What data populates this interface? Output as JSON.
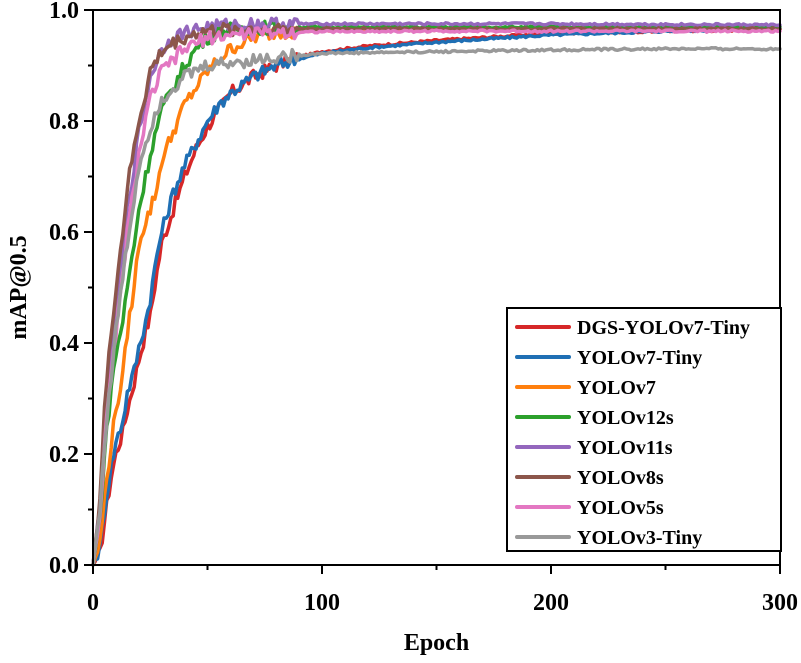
{
  "chart_data": {
    "type": "line",
    "title": "",
    "xlabel": "Epoch",
    "ylabel": "mAP@0.5",
    "xlim": [
      0,
      300
    ],
    "ylim": [
      0,
      1.0
    ],
    "x_ticks": [
      "0",
      "100",
      "200",
      "300"
    ],
    "y_ticks": [
      "0.0",
      "0.2",
      "0.4",
      "0.6",
      "0.8",
      "1.0"
    ],
    "grid": false,
    "legend_position": "bottom-right",
    "series": [
      {
        "name": "DGS-YOLOv7-Tiny",
        "color": "#d62728",
        "x": [
          0,
          3,
          5,
          8,
          10,
          13,
          15,
          18,
          20,
          23,
          25,
          28,
          30,
          35,
          40,
          45,
          50,
          55,
          60,
          70,
          80,
          90,
          100,
          120,
          150,
          200,
          250,
          300
        ],
        "y": [
          0.0,
          0.02,
          0.08,
          0.16,
          0.2,
          0.24,
          0.28,
          0.33,
          0.37,
          0.42,
          0.45,
          0.53,
          0.58,
          0.64,
          0.7,
          0.75,
          0.79,
          0.82,
          0.85,
          0.88,
          0.9,
          0.915,
          0.925,
          0.935,
          0.945,
          0.958,
          0.962,
          0.965
        ]
      },
      {
        "name": "YOLOv7-Tiny",
        "color": "#1f6fb4",
        "x": [
          0,
          3,
          5,
          8,
          10,
          13,
          15,
          18,
          20,
          23,
          25,
          28,
          30,
          35,
          40,
          45,
          50,
          55,
          60,
          70,
          80,
          90,
          100,
          120,
          150,
          200,
          250,
          300
        ],
        "y": [
          0.0,
          0.03,
          0.1,
          0.18,
          0.22,
          0.26,
          0.31,
          0.35,
          0.39,
          0.44,
          0.48,
          0.56,
          0.6,
          0.67,
          0.72,
          0.76,
          0.8,
          0.83,
          0.85,
          0.88,
          0.9,
          0.912,
          0.922,
          0.932,
          0.942,
          0.955,
          0.962,
          0.967
        ]
      },
      {
        "name": "YOLOv7",
        "color": "#ff7f0e",
        "x": [
          0,
          3,
          5,
          8,
          10,
          13,
          15,
          18,
          20,
          23,
          25,
          28,
          30,
          35,
          40,
          45,
          50,
          55,
          60,
          70,
          80,
          90,
          100,
          150,
          200,
          250,
          300
        ],
        "y": [
          0.0,
          0.04,
          0.12,
          0.22,
          0.28,
          0.34,
          0.42,
          0.5,
          0.58,
          0.62,
          0.64,
          0.68,
          0.73,
          0.78,
          0.83,
          0.86,
          0.89,
          0.91,
          0.93,
          0.95,
          0.96,
          0.962,
          0.963,
          0.964,
          0.965,
          0.965,
          0.965
        ]
      },
      {
        "name": "YOLOv12s",
        "color": "#2ca02c",
        "x": [
          0,
          3,
          5,
          8,
          10,
          13,
          15,
          18,
          20,
          23,
          25,
          28,
          30,
          35,
          40,
          45,
          50,
          55,
          60,
          70,
          80,
          100,
          150,
          200,
          250,
          300
        ],
        "y": [
          0.0,
          0.08,
          0.2,
          0.32,
          0.38,
          0.44,
          0.5,
          0.58,
          0.64,
          0.7,
          0.74,
          0.79,
          0.82,
          0.86,
          0.9,
          0.93,
          0.95,
          0.96,
          0.965,
          0.968,
          0.969,
          0.969,
          0.969,
          0.969,
          0.97,
          0.97
        ]
      },
      {
        "name": "YOLOv11s",
        "color": "#9467bd",
        "x": [
          0,
          3,
          5,
          8,
          10,
          13,
          15,
          18,
          20,
          23,
          25,
          28,
          30,
          35,
          40,
          45,
          50,
          60,
          70,
          80,
          100,
          150,
          200,
          250,
          300
        ],
        "y": [
          0.0,
          0.1,
          0.24,
          0.38,
          0.46,
          0.56,
          0.64,
          0.72,
          0.78,
          0.84,
          0.88,
          0.91,
          0.93,
          0.95,
          0.96,
          0.965,
          0.97,
          0.973,
          0.975,
          0.975,
          0.975,
          0.975,
          0.975,
          0.974,
          0.973
        ]
      },
      {
        "name": "YOLOv8s",
        "color": "#8c564b",
        "x": [
          0,
          3,
          5,
          8,
          10,
          13,
          15,
          18,
          20,
          23,
          25,
          28,
          30,
          35,
          40,
          45,
          50,
          60,
          70,
          80,
          100,
          150,
          200,
          250,
          300
        ],
        "y": [
          0.0,
          0.12,
          0.28,
          0.42,
          0.5,
          0.6,
          0.68,
          0.75,
          0.8,
          0.85,
          0.89,
          0.91,
          0.925,
          0.94,
          0.95,
          0.958,
          0.962,
          0.965,
          0.966,
          0.966,
          0.966,
          0.966,
          0.966,
          0.966,
          0.966
        ]
      },
      {
        "name": "YOLOv5s",
        "color": "#e377c2",
        "x": [
          0,
          3,
          5,
          8,
          10,
          13,
          15,
          18,
          20,
          23,
          25,
          28,
          30,
          35,
          40,
          45,
          50,
          60,
          70,
          80,
          100,
          150,
          200,
          250,
          300
        ],
        "y": [
          0.0,
          0.09,
          0.22,
          0.34,
          0.42,
          0.52,
          0.6,
          0.68,
          0.74,
          0.8,
          0.84,
          0.87,
          0.89,
          0.91,
          0.93,
          0.94,
          0.95,
          0.955,
          0.958,
          0.96,
          0.961,
          0.962,
          0.962,
          0.962,
          0.962
        ]
      },
      {
        "name": "YOLOv3-Tiny",
        "color": "#999999",
        "x": [
          0,
          3,
          5,
          8,
          10,
          13,
          15,
          18,
          20,
          23,
          25,
          28,
          30,
          35,
          40,
          45,
          50,
          60,
          70,
          80,
          100,
          150,
          200,
          250,
          300
        ],
        "y": [
          0.0,
          0.1,
          0.22,
          0.34,
          0.42,
          0.52,
          0.58,
          0.66,
          0.72,
          0.76,
          0.79,
          0.82,
          0.84,
          0.86,
          0.88,
          0.89,
          0.9,
          0.905,
          0.91,
          0.915,
          0.922,
          0.925,
          0.928,
          0.93,
          0.93
        ]
      }
    ]
  }
}
